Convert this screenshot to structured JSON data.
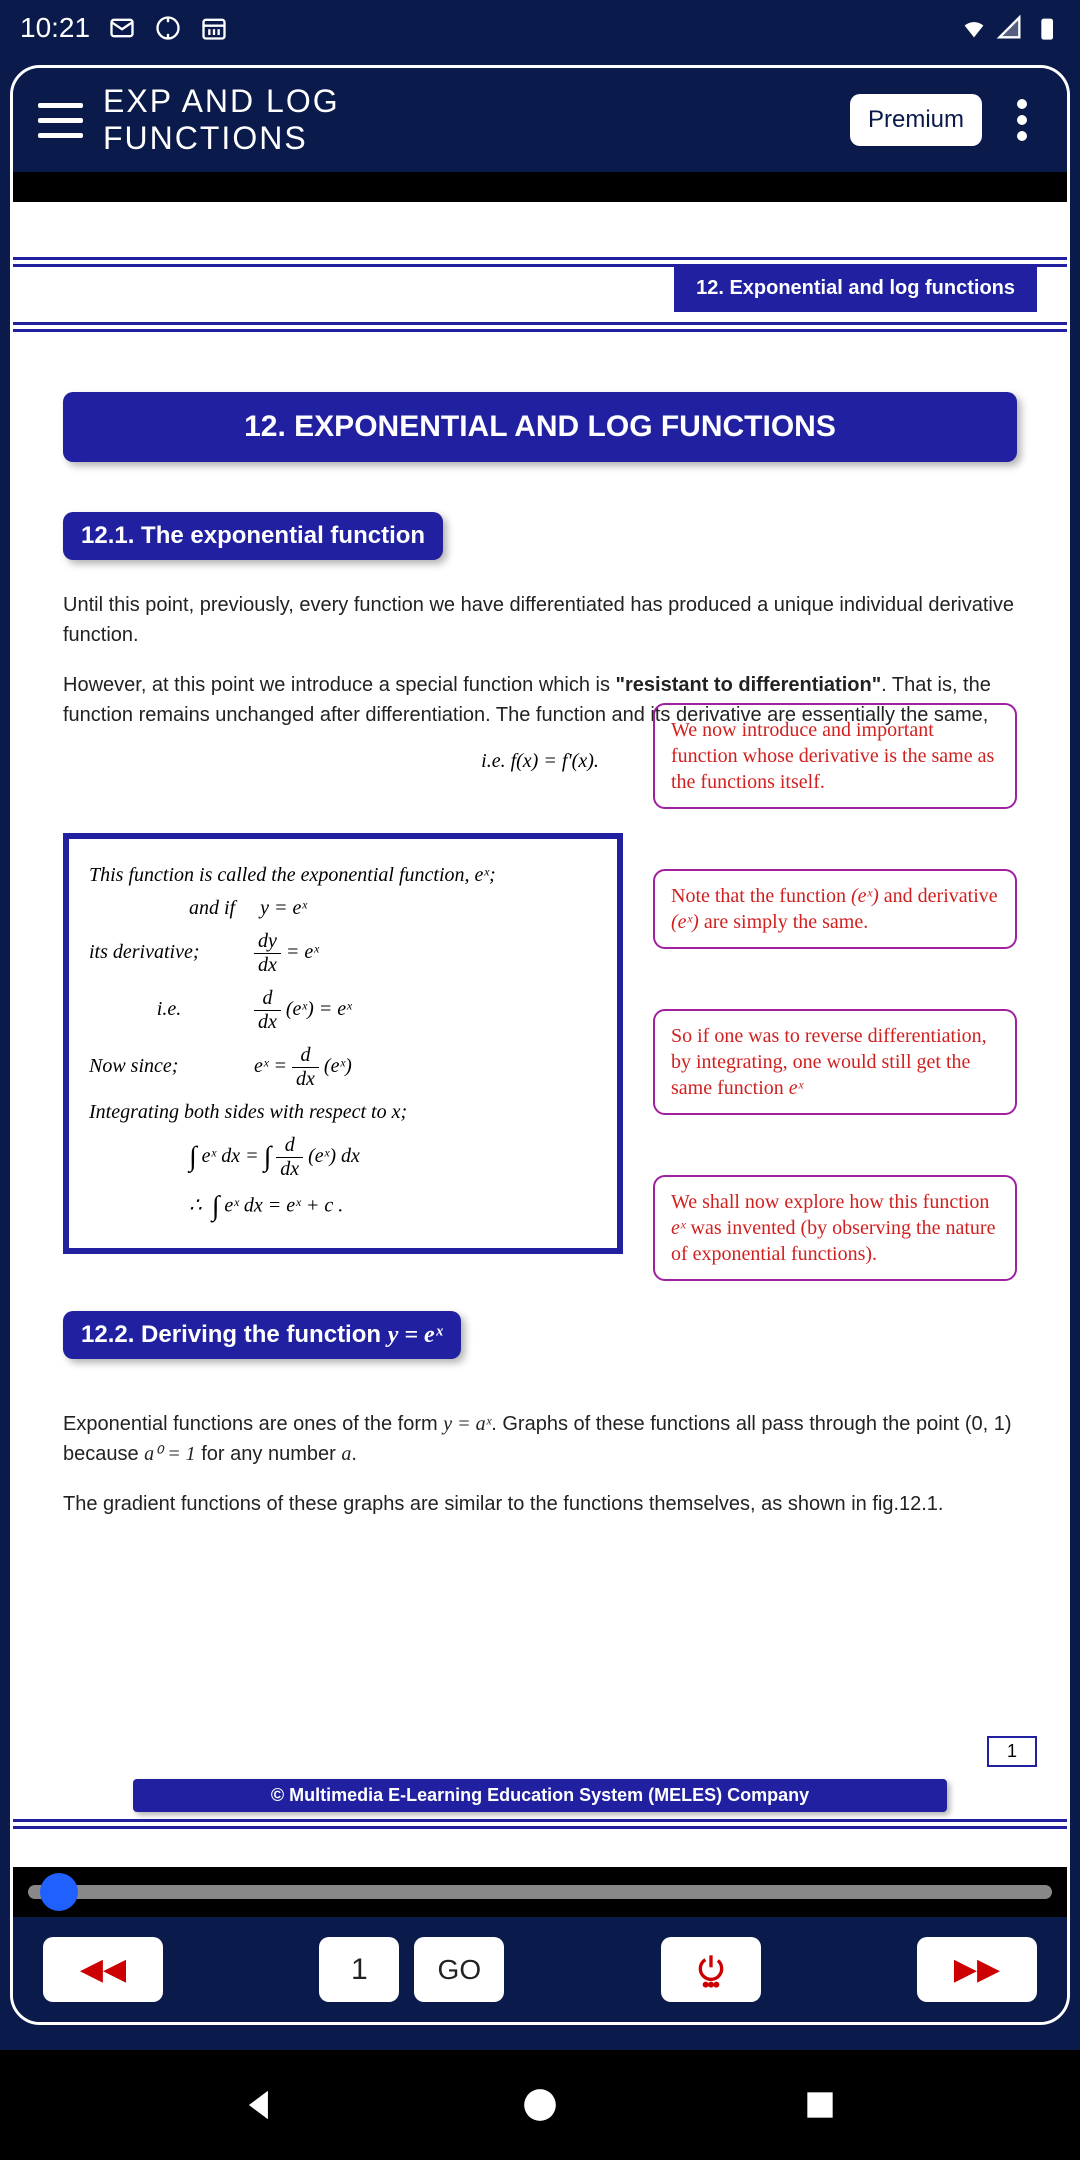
{
  "status": {
    "time": "10:21"
  },
  "header": {
    "title_line": "EXP AND LOG FUNCTIONS",
    "premium": "Premium"
  },
  "doc": {
    "chapter_tab": "12. Exponential and log functions",
    "chapter_title": "12. EXPONENTIAL AND LOG FUNCTIONS",
    "section_12_1": "12.1. The exponential function",
    "para1": "Until this point, previously, every function we have differentiated has produced a unique individual derivative function.",
    "para2a": "However, at this point we introduce a special function which is ",
    "para2b": "\"resistant to differentiation\"",
    "para2c": ". That is, the function remains unchanged after differentiation. The function and its derivative are essentially the same,",
    "formula_ie": "i.e.  f(x) = f'(x).",
    "box_line1": "This function is called the exponential function,  eˣ;",
    "box_and_if": "and  if",
    "box_y_ex": "y = eˣ",
    "box_deriv_label": "its derivative;",
    "box_ie_label": "i.e.",
    "box_since_label": "Now since;",
    "box_integrating": "Integrating both sides with respect to x;",
    "note1": "We now introduce and important function whose derivative is the same as the functions itself.",
    "note2a": "Note that the function ",
    "note2b": " and derivative ",
    "note2c": " are simply the same.",
    "note3": "So if one was to reverse differentiation, by integrating, one would still get the same function ",
    "note4a": "We shall now explore how this function ",
    "note4b": " was invented (by observing the nature of exponential functions).",
    "section_12_2": "12.2. Deriving the function y = eˣ",
    "para3a": "Exponential functions are ones of the form ",
    "para3b": ". Graphs of these functions all pass through the point ",
    "para3c": " because ",
    "para3d": " for any number ",
    "para4": "The gradient functions of these graphs are similar to the functions themselves, as shown in fig.12.1.",
    "page_num": "1",
    "copyright": "© Multimedia E-Learning Education System (MELES) Company"
  },
  "controls": {
    "page_input": "1",
    "go": "GO"
  },
  "colors": {
    "primary_dark": "#0a1a4a",
    "primary_blue": "#2020a0",
    "note_border": "#a020a0",
    "note_text": "#d02020",
    "accent_red": "#cc0000"
  }
}
